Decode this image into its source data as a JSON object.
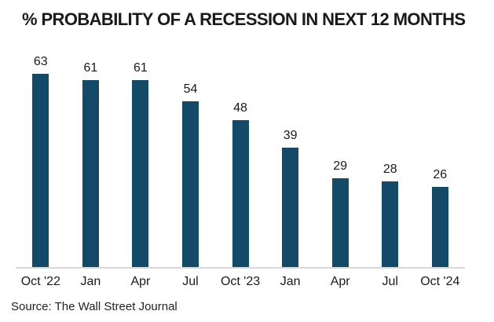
{
  "chart_data": {
    "type": "bar",
    "title": "% PROBABILITY OF A RECESSION IN NEXT 12 MONTHS",
    "categories": [
      "Oct '22",
      "Jan",
      "Apr",
      "Jul",
      "Oct '23",
      "Jan",
      "Apr",
      "Jul",
      "Oct '24"
    ],
    "values": [
      63,
      61,
      61,
      54,
      48,
      39,
      29,
      28,
      26
    ],
    "ylim": [
      0,
      63
    ],
    "xlabel": "",
    "ylabel": "",
    "grid": "off",
    "legend": "none",
    "data_labels": "above-bars",
    "bar_color": "#124a68",
    "axis_line_color": "#d9d9d9",
    "label_color": "#1a1a1a"
  },
  "source": "Source: The Wall Street Journal"
}
